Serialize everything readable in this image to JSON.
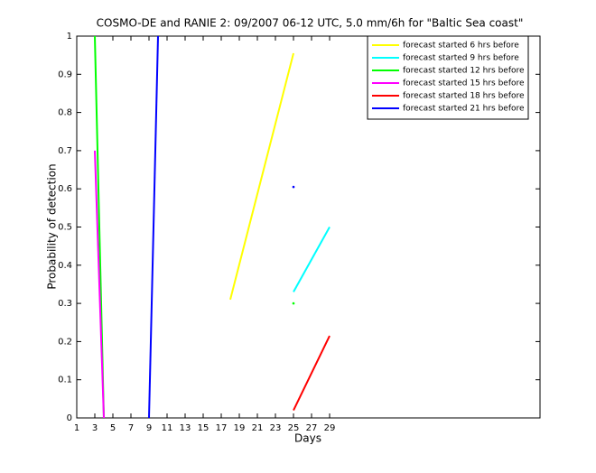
{
  "chart_data": {
    "type": "line",
    "title": "COSMO-DE and RANIE 2: 09/2007 06-12 UTC, 5.0 mm/6h for \"Baltic Sea coast\"",
    "x_label": "Days",
    "y_label": "Probability of detection",
    "x": [
      3,
      4,
      9,
      10,
      18,
      25,
      29
    ],
    "series": [
      {
        "name": "forecast started 6 hrs before",
        "color": "#ffff00",
        "values": [
          null,
          null,
          null,
          null,
          0.31,
          0.955,
          null
        ]
      },
      {
        "name": "forecast started 9 hrs before",
        "color": "#00ffff",
        "values": [
          null,
          null,
          null,
          null,
          null,
          0.33,
          0.5
        ]
      },
      {
        "name": "forecast started 12 hrs before",
        "color": "#00ff00",
        "values": [
          1,
          0,
          null,
          null,
          null,
          0.3,
          null
        ]
      },
      {
        "name": "forecast started 15 hrs before",
        "color": "#ff00ff",
        "values": [
          0.7,
          0,
          null,
          null,
          null,
          null,
          null
        ]
      },
      {
        "name": "forecast started 18 hrs before",
        "color": "#ff0000",
        "values": [
          null,
          null,
          null,
          null,
          null,
          0.02,
          0.215
        ]
      },
      {
        "name": "forecast started 21 hrs before",
        "color": "#0000ff",
        "values": [
          null,
          null,
          0,
          1,
          null,
          0.605,
          null
        ]
      }
    ],
    "xlim": [
      1,
      52.3
    ],
    "ylim": [
      0,
      1
    ],
    "xticks": [
      1,
      3,
      5,
      7,
      9,
      11,
      13,
      15,
      17,
      19,
      21,
      23,
      25,
      27,
      29
    ],
    "yticks": [
      0,
      0.1,
      0.2,
      0.3,
      0.4,
      0.5,
      0.6,
      0.7,
      0.8,
      0.9,
      1
    ],
    "legend": "upper-right"
  }
}
